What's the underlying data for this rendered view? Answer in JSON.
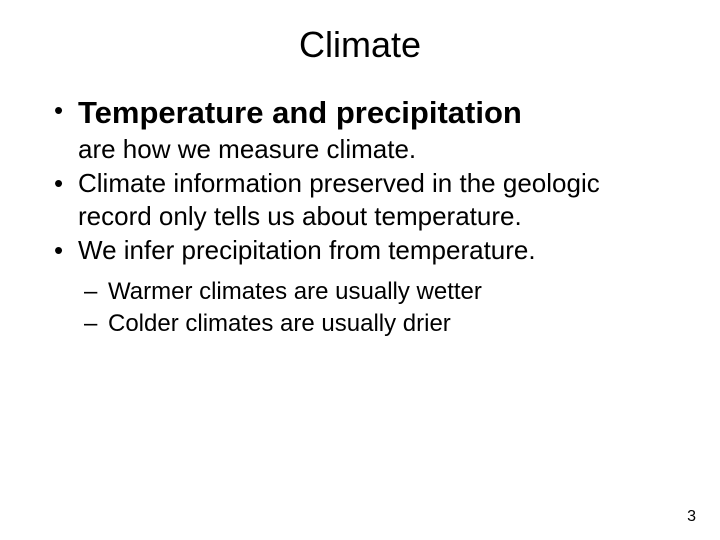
{
  "slide": {
    "title": "Climate",
    "title_fontsize": 36,
    "text_color": "#000000",
    "background_color": "#ffffff",
    "bullets": [
      {
        "lead_bold": "Temperature and precipitation",
        "rest": "are how we measure climate.",
        "lead_fontsize": 31,
        "rest_fontsize": 26
      },
      {
        "text": "Climate information preserved in the geologic record only tells us about temperature.",
        "fontsize": 26
      },
      {
        "text": "We infer precipitation from temperature.",
        "fontsize": 26,
        "subbullets": [
          {
            "text": "Warmer climates are usually wetter",
            "fontsize": 24
          },
          {
            "text": "Colder climates are usually drier",
            "fontsize": 24
          }
        ]
      }
    ],
    "page_number": "3",
    "page_number_fontsize": 16
  }
}
